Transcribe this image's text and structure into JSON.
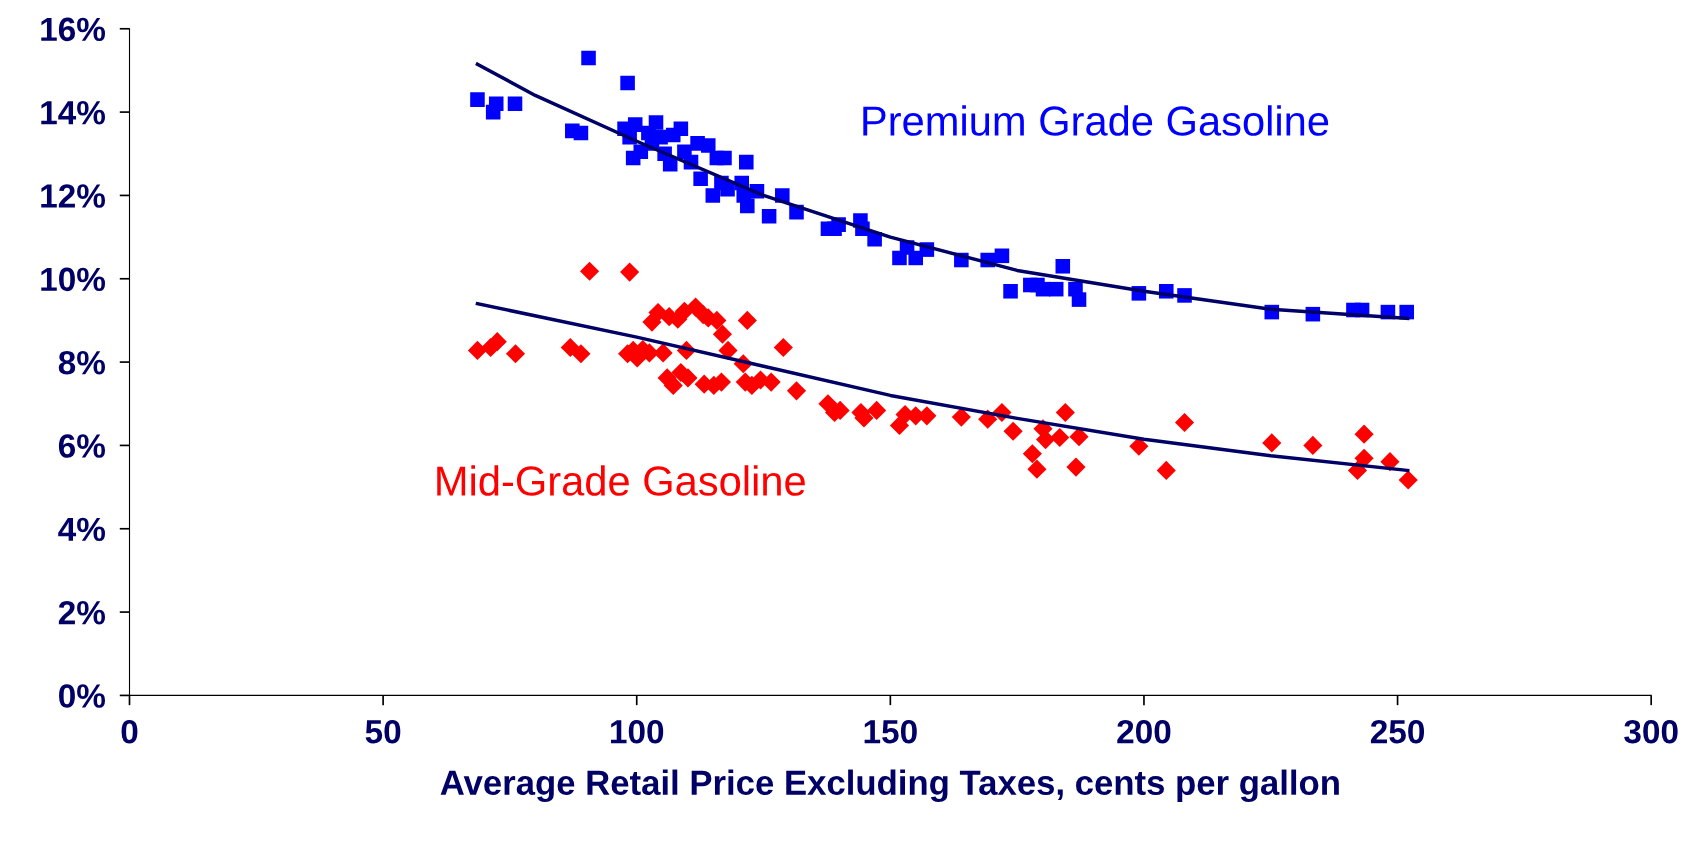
{
  "chart_data": {
    "type": "scatter",
    "xlabel": "Average Retail Price Excluding Taxes, cents per gallon",
    "xlim": [
      0,
      300
    ],
    "xticks": [
      0,
      50,
      100,
      150,
      200,
      250,
      300
    ],
    "ylim": [
      0,
      16
    ],
    "yticks": [
      {
        "value": 0,
        "label": "0%"
      },
      {
        "value": 2,
        "label": "2%"
      },
      {
        "value": 4,
        "label": "4%"
      },
      {
        "value": 6,
        "label": "6%"
      },
      {
        "value": 8,
        "label": "8%"
      },
      {
        "value": 10,
        "label": "10%"
      },
      {
        "value": 12,
        "label": "12%"
      },
      {
        "value": 14,
        "label": "14%"
      },
      {
        "value": 16,
        "label": "16%"
      }
    ],
    "grid": false,
    "legend": false,
    "series": [
      {
        "name": "Premium Grade Gasoline",
        "marker": "square",
        "color": "#0000ff",
        "x": [
          68.6,
          71.7,
          72.3,
          76,
          87.3,
          89,
          90.5,
          98.2,
          97.6,
          98.6,
          99.3,
          99.7,
          100.8,
          102.3,
          103,
          103.8,
          104.7,
          105.5,
          106.6,
          107.2,
          108.7,
          109.4,
          110.7,
          112,
          112.6,
          114.1,
          115,
          115.8,
          116.7,
          117.3,
          117.9,
          120.7,
          121.1,
          121.6,
          121.8,
          123.7,
          126.1,
          128.7,
          131.5,
          137.7,
          139,
          139.8,
          144.1,
          144.5,
          146.9,
          151.8,
          153.3,
          155,
          157.2,
          164,
          169.2,
          172,
          173.7,
          177.6,
          179,
          180.1,
          182.7,
          184,
          186.5,
          187.2,
          199,
          204.4,
          208,
          225.2,
          233.3,
          241.3,
          243,
          248.1,
          251.8
        ],
        "values": [
          14.3,
          14.0,
          14.2,
          14.2,
          13.55,
          13.5,
          15.3,
          14.7,
          13.6,
          13.4,
          12.9,
          13.7,
          13.05,
          13.5,
          13.25,
          13.75,
          13.4,
          13.0,
          12.75,
          13.45,
          13.6,
          13.05,
          12.8,
          13.25,
          12.4,
          13.2,
          12.0,
          12.9,
          12.3,
          12.9,
          12.15,
          12.3,
          12.0,
          12.8,
          11.75,
          12.1,
          11.5,
          12.0,
          11.6,
          11.2,
          11.2,
          11.3,
          11.4,
          11.2,
          10.95,
          10.5,
          10.75,
          10.5,
          10.7,
          10.45,
          10.45,
          10.55,
          9.7,
          9.85,
          9.85,
          9.75,
          9.75,
          10.3,
          9.75,
          9.5,
          9.65,
          9.7,
          9.6,
          9.2,
          9.15,
          9.25,
          9.25,
          9.2,
          9.2
        ]
      },
      {
        "name": "Mid-Grade Gasoline",
        "marker": "diamond",
        "color": "#ff0000",
        "x": [
          68.6,
          71.2,
          72.5,
          76.1,
          86.9,
          89,
          90.7,
          98.2,
          98.6,
          99.3,
          100.1,
          101.2,
          102.5,
          103,
          104.2,
          105.2,
          106,
          106.4,
          107.2,
          108.1,
          108.7,
          109.4,
          109.8,
          110.1,
          111.6,
          113.1,
          113.3,
          114.1,
          115.2,
          115.8,
          116.7,
          116.9,
          118,
          121,
          121.4,
          121.8,
          122.7,
          124.4,
          126.5,
          128.9,
          131.5,
          137.7,
          139,
          140.1,
          144.2,
          144.8,
          147.3,
          151.8,
          152.9,
          155,
          157.2,
          164,
          169.2,
          172,
          174.2,
          178,
          178.9,
          180.1,
          180.6,
          183.4,
          184.5,
          186.6,
          187.2,
          199,
          204.4,
          208,
          225.2,
          233.3,
          242.1,
          243.4,
          243.4,
          248.5,
          252.1
        ],
        "values": [
          8.28,
          8.35,
          8.49,
          8.2,
          8.35,
          8.2,
          10.18,
          8.2,
          10.16,
          8.28,
          8.1,
          8.3,
          8.22,
          8.96,
          9.19,
          8.22,
          7.62,
          9.09,
          7.44,
          9.03,
          7.75,
          9.22,
          8.28,
          7.62,
          9.32,
          9.14,
          7.47,
          9.06,
          7.44,
          9.0,
          7.52,
          8.67,
          8.28,
          7.96,
          7.52,
          9.0,
          7.44,
          7.57,
          7.52,
          8.35,
          7.31,
          7.0,
          6.79,
          6.84,
          6.79,
          6.66,
          6.84,
          6.48,
          6.74,
          6.71,
          6.71,
          6.68,
          6.63,
          6.79,
          6.34,
          5.8,
          5.43,
          6.4,
          6.14,
          6.19,
          6.79,
          5.48,
          6.21,
          5.98,
          5.4,
          6.55,
          6.06,
          6.0,
          5.4,
          6.27,
          5.69,
          5.61,
          5.17
        ]
      },
      {
        "type": "line",
        "color": "#000066",
        "x": [
          68.6,
          80,
          100,
          125,
          150,
          175,
          200,
          225,
          252
        ],
        "values": [
          15.15,
          14.4,
          13.3,
          12.0,
          11.0,
          10.2,
          9.7,
          9.27,
          9.05
        ]
      },
      {
        "type": "line",
        "color": "#000066",
        "x": [
          68.6,
          100,
          125,
          150,
          175,
          200,
          225,
          252
        ],
        "values": [
          9.4,
          8.6,
          7.9,
          7.2,
          6.65,
          6.15,
          5.75,
          5.4
        ]
      }
    ]
  }
}
